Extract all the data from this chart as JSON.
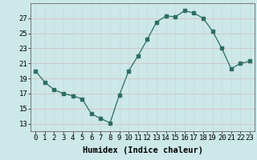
{
  "x": [
    0,
    1,
    2,
    3,
    4,
    5,
    6,
    7,
    8,
    9,
    10,
    11,
    12,
    13,
    14,
    15,
    16,
    17,
    18,
    19,
    20,
    21,
    22,
    23
  ],
  "y": [
    20.0,
    18.5,
    17.5,
    17.0,
    16.7,
    16.3,
    14.3,
    13.7,
    13.1,
    16.8,
    20.0,
    22.0,
    24.2,
    26.5,
    27.3,
    27.2,
    28.0,
    27.7,
    27.0,
    25.3,
    23.0,
    20.3,
    21.0,
    21.3
  ],
  "xlabel": "Humidex (Indice chaleur)",
  "ylim": [
    12,
    29
  ],
  "xlim": [
    -0.5,
    23.5
  ],
  "yticks": [
    13,
    15,
    17,
    19,
    21,
    23,
    25,
    27
  ],
  "xticks": [
    0,
    1,
    2,
    3,
    4,
    5,
    6,
    7,
    8,
    9,
    10,
    11,
    12,
    13,
    14,
    15,
    16,
    17,
    18,
    19,
    20,
    21,
    22,
    23
  ],
  "line_color": "#2d6e63",
  "marker_color": "#2d6e63",
  "bg_color": "#cce8e8",
  "grid_color_h": "#d8b8b8",
  "grid_color_v": "#c8d8d8",
  "tick_label_fontsize": 6.5,
  "xlabel_fontsize": 7.5
}
